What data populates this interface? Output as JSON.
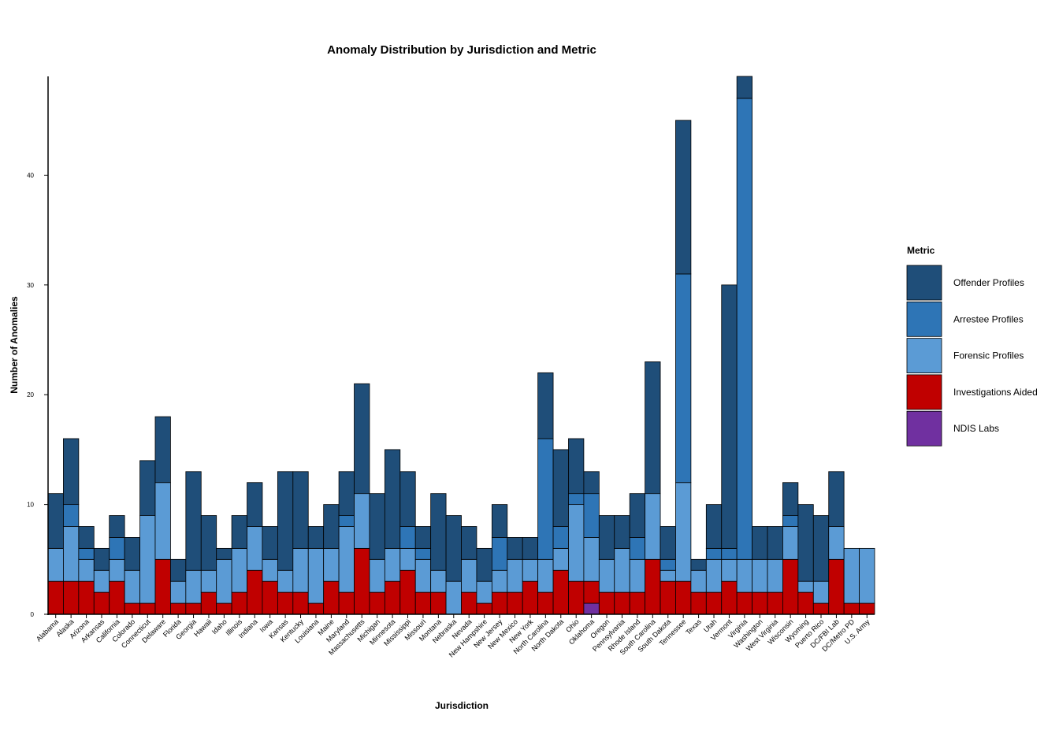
{
  "chart_data": {
    "type": "bar",
    "stacked": true,
    "title": "Anomaly Distribution by Jurisdiction and Metric",
    "xlabel": "Jurisdiction",
    "ylabel": "Number of Anomalies",
    "ylim": [
      0,
      49
    ],
    "yticks": [
      0,
      10,
      20,
      30,
      40
    ],
    "grid": false,
    "legend_title": "Metric",
    "legend_position": "right",
    "categories": [
      "Alabama",
      "Alaska",
      "Arizona",
      "Arkansas",
      "California",
      "Colorado",
      "Connecticut",
      "Delaware",
      "Florida",
      "Georgia",
      "Hawaii",
      "Idaho",
      "Illinois",
      "Indiana",
      "Iowa",
      "Kansas",
      "Kentucky",
      "Louisiana",
      "Maine",
      "Maryland",
      "Massachusetts",
      "Michigan",
      "Minnesota",
      "Mississippi",
      "Missouri",
      "Montana",
      "Nebraska",
      "Nevada",
      "New Hampshire",
      "New Jersey",
      "New Mexico",
      "New York",
      "North Carolina",
      "North Dakota",
      "Ohio",
      "Oklahoma",
      "Oregon",
      "Pennsylvania",
      "Rhode Island",
      "South Carolina",
      "South Dakota",
      "Tennessee",
      "Texas",
      "Utah",
      "Vermont",
      "Virginia",
      "Washington",
      "West Virginia",
      "Wisconsin",
      "Wyoming",
      "Puerto Rico",
      "DC/FBI Lab",
      "DC/Metro PD",
      "U.S. Army"
    ],
    "series": [
      {
        "name": "NDIS Labs",
        "color": "#7030a0",
        "values": [
          0,
          0,
          0,
          0,
          0,
          0,
          0,
          0,
          0,
          0,
          0,
          0,
          0,
          0,
          0,
          0,
          0,
          0,
          0,
          0,
          0,
          0,
          0,
          0,
          0,
          0,
          0,
          0,
          0,
          0,
          0,
          0,
          0,
          0,
          0,
          1,
          0,
          0,
          0,
          0,
          0,
          0,
          0,
          0,
          0,
          0,
          0,
          0,
          0,
          0,
          0,
          0,
          0,
          0
        ]
      },
      {
        "name": "Investigations Aided",
        "color": "#c00000",
        "values": [
          3,
          3,
          3,
          2,
          3,
          1,
          1,
          5,
          1,
          1,
          2,
          1,
          2,
          4,
          3,
          2,
          2,
          1,
          3,
          2,
          6,
          2,
          3,
          4,
          2,
          2,
          0,
          2,
          1,
          2,
          2,
          3,
          2,
          4,
          3,
          2,
          2,
          2,
          2,
          5,
          3,
          3,
          2,
          2,
          3,
          2,
          2,
          2,
          5,
          2,
          1,
          5,
          1,
          1
        ]
      },
      {
        "name": "Forensic Profiles",
        "color": "#5b9bd5",
        "values": [
          3,
          5,
          2,
          2,
          2,
          3,
          8,
          7,
          2,
          3,
          2,
          4,
          4,
          4,
          2,
          2,
          4,
          5,
          3,
          6,
          5,
          3,
          3,
          2,
          3,
          2,
          3,
          3,
          2,
          2,
          3,
          2,
          3,
          2,
          7,
          4,
          3,
          4,
          3,
          6,
          1,
          9,
          2,
          3,
          2,
          3,
          3,
          3,
          3,
          1,
          2,
          3,
          5,
          5
        ]
      },
      {
        "name": "Arrestee Profiles",
        "color": "#2e75b6",
        "values": [
          0,
          2,
          1,
          0,
          2,
          0,
          0,
          0,
          0,
          0,
          0,
          0,
          0,
          0,
          0,
          0,
          0,
          0,
          0,
          1,
          0,
          0,
          0,
          2,
          1,
          0,
          0,
          0,
          0,
          3,
          0,
          0,
          11,
          2,
          1,
          4,
          0,
          0,
          2,
          0,
          1,
          19,
          0,
          1,
          1,
          42,
          0,
          0,
          1,
          0,
          0,
          0,
          0,
          0
        ]
      },
      {
        "name": "Offender Profiles",
        "color": "#1f4e79",
        "values": [
          5,
          6,
          2,
          2,
          2,
          3,
          5,
          6,
          2,
          9,
          5,
          1,
          3,
          4,
          3,
          9,
          7,
          2,
          4,
          4,
          10,
          6,
          9,
          5,
          2,
          7,
          6,
          3,
          3,
          3,
          2,
          2,
          6,
          7,
          5,
          2,
          4,
          3,
          4,
          12,
          3,
          14,
          1,
          4,
          24,
          2,
          3,
          3,
          3,
          7,
          6,
          5,
          0,
          0
        ]
      }
    ],
    "legend_order": [
      "Offender Profiles",
      "Arrestee Profiles",
      "Forensic Profiles",
      "Investigations Aided",
      "NDIS Labs"
    ]
  }
}
